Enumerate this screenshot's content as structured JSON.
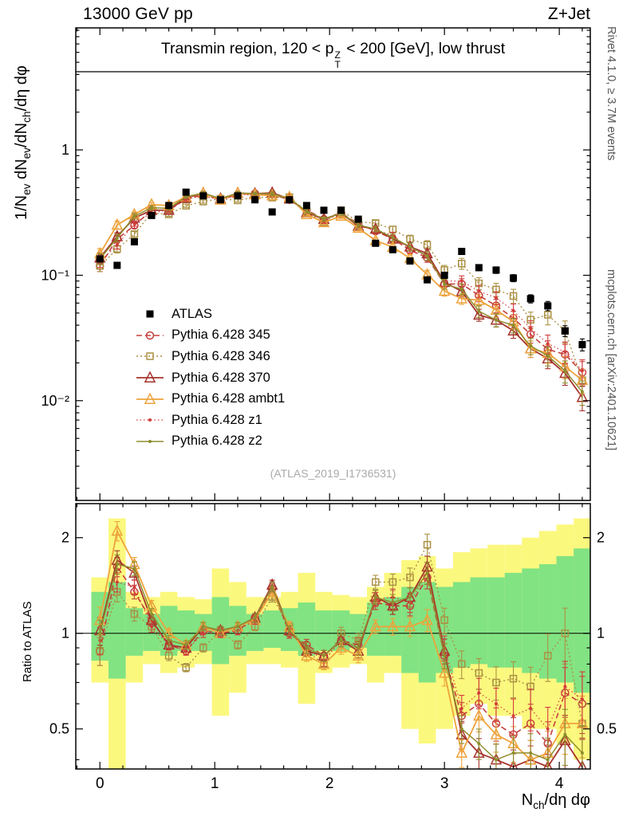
{
  "header": {
    "left": "13000 GeV pp",
    "right": "Z+Jet"
  },
  "panel_title": {
    "pre": "Transmin region, 120 < p",
    "sup": "Z",
    "sub": "T",
    "post": " < 200 [GeV], low thrust"
  },
  "side_captions": {
    "top": "Rivet 4.1.0, ≥ 3.7M events",
    "bottom": "mcplots.cern.ch [arXiv:2401.10621]"
  },
  "watermark": "(ATLAS_2019_I1736531)",
  "axes": {
    "main_y_label": {
      "p1": "1/N",
      "s1": "ev",
      "p2": " dN",
      "s2": "ev",
      "p3": "/dN",
      "s3": "ch",
      "p4": "/dη dφ"
    },
    "ratio_y_label": "Ratio to ATLAS",
    "x_label": {
      "p1": "N",
      "s1": "ch",
      "p2": "/dη dφ"
    }
  },
  "chart_data": {
    "type": "line",
    "title": "Transmin region, 120 < pT^Z < 200 [GeV], low thrust",
    "xlabel": "Nch/deta dphi",
    "ylabel": "1/Nev dNev/dNch/deta dphi",
    "xlim": [
      -0.21,
      4.27
    ],
    "x_ticks": [
      0,
      1,
      2,
      3,
      4
    ],
    "x_minor_step": 0.2,
    "main": {
      "ylog": true,
      "ylim": [
        0.0016,
        9.4
      ],
      "yticks": [
        {
          "v": 1,
          "t": "1"
        },
        {
          "v": 0.1,
          "t": "10⁻¹"
        },
        {
          "v": 0.01,
          "t": "10⁻²"
        }
      ]
    },
    "ratio": {
      "ylog": true,
      "ylim": [
        0.374,
        2.56
      ],
      "yticks": [
        {
          "v": 2,
          "t": "2"
        },
        {
          "v": 1,
          "t": "1"
        },
        {
          "v": 0.5,
          "t": "0.5"
        }
      ],
      "yminor": [
        0.4,
        0.6,
        0.7,
        0.8,
        0.9
      ]
    },
    "x": [
      0.0,
      0.15,
      0.3,
      0.45,
      0.6,
      0.75,
      0.9,
      1.05,
      1.2,
      1.35,
      1.5,
      1.65,
      1.8,
      1.95,
      2.1,
      2.25,
      2.4,
      2.55,
      2.7,
      2.85,
      3.0,
      3.15,
      3.3,
      3.45,
      3.6,
      3.75,
      3.9,
      4.05,
      4.2
    ],
    "atlas": {
      "label": "ATLAS",
      "color": "#000000",
      "marker": "sq-f",
      "ms": 4.5,
      "line": "none",
      "values": [
        0.135,
        0.12,
        0.185,
        0.3,
        0.36,
        0.46,
        0.43,
        0.4,
        0.43,
        0.4,
        0.32,
        0.4,
        0.36,
        0.33,
        0.33,
        0.28,
        0.18,
        0.16,
        0.13,
        0.092,
        0.1,
        0.155,
        0.115,
        0.11,
        0.095,
        0.065,
        0.057,
        0.036,
        0.028
      ]
    },
    "series": [
      {
        "id": "p345",
        "label": "Pythia 6.428 345",
        "color": "#c5403c",
        "line": "dash",
        "lw": 1.6,
        "marker": "ci-o",
        "ms": 4.5,
        "ratio": [
          0.88,
          1.62,
          1.35,
          1.1,
          0.92,
          0.88,
          1.02,
          1.0,
          1.02,
          1.12,
          1.38,
          1.0,
          0.92,
          0.85,
          0.95,
          0.92,
          1.25,
          1.22,
          1.22,
          1.5,
          0.85,
          0.55,
          0.6,
          0.52,
          0.48,
          0.52,
          0.45,
          0.65,
          0.6
        ]
      },
      {
        "id": "p346",
        "label": "Pythia 6.428 346",
        "color": "#ab9144",
        "line": "dot",
        "lw": 1.4,
        "marker": "sq-o",
        "ms": 4,
        "ratio": [
          0.88,
          1.35,
          1.15,
          1.05,
          0.85,
          0.78,
          0.9,
          1.02,
          0.92,
          1.05,
          1.3,
          1.05,
          0.88,
          0.8,
          1.0,
          0.95,
          1.45,
          1.45,
          1.5,
          1.9,
          1.1,
          0.8,
          0.75,
          0.7,
          0.72,
          0.68,
          0.85,
          1.0,
          0.52
        ]
      },
      {
        "id": "p370",
        "label": "Pythia 6.428 370",
        "color": "#a5342c",
        "line": "solid",
        "lw": 1.8,
        "marker": "tr-o",
        "ms": 5.5,
        "ratio": [
          1.02,
          1.7,
          1.55,
          1.1,
          0.92,
          0.9,
          1.05,
          1.02,
          1.05,
          1.12,
          1.42,
          1.02,
          0.88,
          0.85,
          0.95,
          0.88,
          1.3,
          1.22,
          1.3,
          1.62,
          0.88,
          0.48,
          0.42,
          0.4,
          0.38,
          0.4,
          0.38,
          0.46,
          0.38
        ]
      },
      {
        "id": "ambt1",
        "label": "Pythia 6.428 ambt1",
        "color": "#eda33b",
        "line": "solid",
        "lw": 1.8,
        "marker": "tr-o",
        "ms": 5.5,
        "ratio": [
          1.1,
          2.1,
          1.65,
          1.22,
          1.0,
          0.92,
          1.05,
          1.0,
          1.05,
          1.1,
          1.35,
          1.05,
          0.85,
          0.8,
          0.9,
          0.85,
          1.05,
          1.05,
          1.05,
          1.1,
          0.75,
          0.42,
          0.55,
          0.48,
          0.45,
          0.4,
          0.42,
          0.52,
          0.52
        ]
      },
      {
        "id": "z1",
        "label": "Pythia 6.428 z1",
        "color": "#d23c3c",
        "line": "fdot",
        "lw": 1.2,
        "marker": "dot",
        "ms": 2,
        "ratio": [
          0.95,
          1.45,
          1.4,
          1.05,
          0.92,
          0.88,
          1.0,
          1.0,
          1.02,
          1.1,
          1.4,
          1.0,
          0.9,
          0.82,
          0.95,
          0.9,
          1.28,
          1.3,
          1.25,
          1.55,
          0.9,
          0.58,
          0.65,
          0.6,
          0.55,
          0.58,
          0.5,
          0.68,
          0.62
        ]
      },
      {
        "id": "z2",
        "label": "Pythia 6.428 z2",
        "color": "#8e8e2e",
        "line": "solid",
        "lw": 1.5,
        "marker": "dot",
        "ms": 2,
        "ratio": [
          1.0,
          1.65,
          1.6,
          1.15,
          0.95,
          0.92,
          1.05,
          1.02,
          1.05,
          1.12,
          1.4,
          1.02,
          0.9,
          0.85,
          0.95,
          0.9,
          1.3,
          1.25,
          1.3,
          1.55,
          0.85,
          0.5,
          0.45,
          0.4,
          0.42,
          0.42,
          0.4,
          0.48,
          0.42
        ]
      }
    ],
    "mc_rel_err": [
      0.1,
      0.07,
      0.05,
      0.04,
      0.035,
      0.03,
      0.03,
      0.03,
      0.03,
      0.03,
      0.035,
      0.035,
      0.04,
      0.04,
      0.045,
      0.05,
      0.05,
      0.06,
      0.07,
      0.08,
      0.09,
      0.1,
      0.11,
      0.12,
      0.13,
      0.15,
      0.17,
      0.2,
      0.22
    ],
    "bands": {
      "yellow": "#fbf87e",
      "green": "#82e382",
      "bin_halfwidth": 0.075,
      "yellow_lo": [
        0.7,
        0.35,
        0.7,
        0.8,
        0.75,
        0.78,
        0.8,
        0.55,
        0.65,
        0.8,
        0.8,
        0.78,
        0.6,
        0.75,
        0.78,
        0.8,
        0.7,
        0.75,
        0.5,
        0.45,
        0.5,
        0.55,
        0.6,
        0.55,
        0.55,
        0.5,
        0.5,
        0.45,
        0.4
      ],
      "yellow_hi": [
        1.5,
        2.3,
        1.35,
        1.3,
        1.35,
        1.3,
        1.28,
        1.6,
        1.45,
        1.3,
        1.3,
        1.35,
        1.55,
        1.35,
        1.32,
        1.3,
        1.4,
        1.55,
        1.7,
        1.75,
        1.6,
        1.8,
        1.85,
        1.9,
        1.9,
        2.0,
        2.1,
        2.2,
        2.3
      ],
      "green_lo": [
        0.82,
        0.72,
        0.85,
        0.88,
        0.85,
        0.88,
        0.88,
        0.8,
        0.85,
        0.88,
        0.9,
        0.88,
        0.85,
        0.88,
        0.88,
        0.9,
        0.85,
        0.85,
        0.75,
        0.7,
        0.75,
        0.78,
        0.8,
        0.78,
        0.78,
        0.75,
        0.72,
        0.7,
        0.65
      ],
      "green_hi": [
        1.35,
        1.45,
        1.2,
        1.15,
        1.22,
        1.18,
        1.15,
        1.3,
        1.22,
        1.15,
        1.18,
        1.2,
        1.25,
        1.18,
        1.18,
        1.15,
        1.25,
        1.3,
        1.4,
        1.45,
        1.4,
        1.45,
        1.5,
        1.5,
        1.55,
        1.6,
        1.65,
        1.75,
        1.85
      ]
    },
    "legend_position": "inside-left",
    "grid": false
  }
}
